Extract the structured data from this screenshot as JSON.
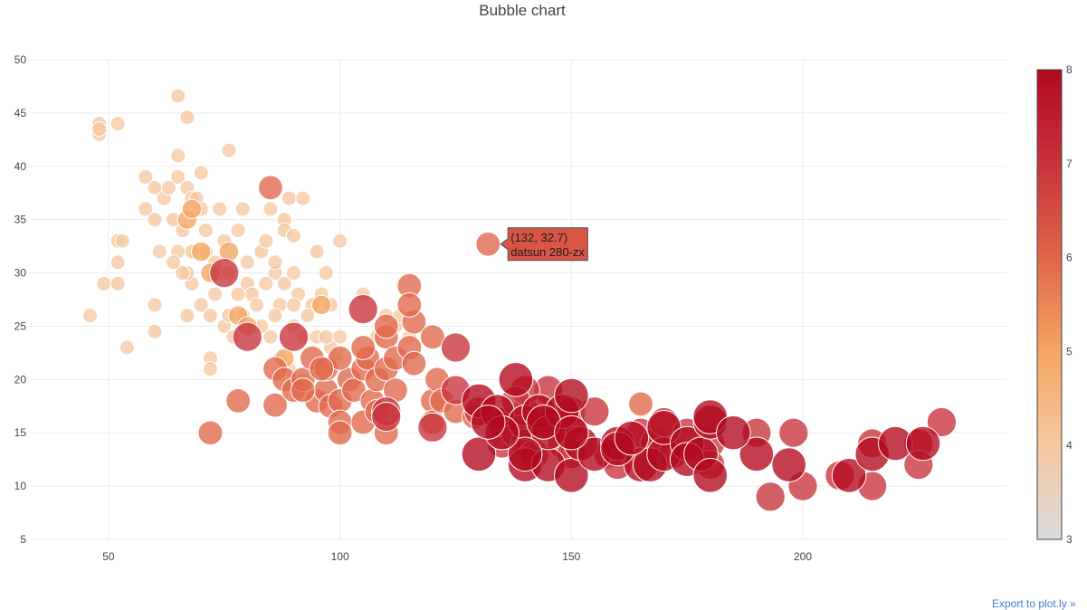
{
  "chart_data": {
    "type": "scatter",
    "title": "Bubble chart",
    "xlabel": "",
    "ylabel": "",
    "xlim": [
      33,
      244
    ],
    "ylim": [
      5,
      50
    ],
    "x_ticks": [
      50,
      100,
      150,
      200
    ],
    "y_ticks": [
      5,
      10,
      15,
      20,
      25,
      30,
      35,
      40,
      45,
      50
    ],
    "grid": true,
    "colorscale": {
      "min": 3,
      "max": 8,
      "ticks": [
        3,
        4,
        5,
        6,
        7,
        8
      ],
      "stops": [
        [
          "#dcdcdc",
          0
        ],
        [
          "#f4c8a0",
          0.2
        ],
        [
          "#f5a562",
          0.4
        ],
        [
          "#e0664a",
          0.6
        ],
        [
          "#c8323c",
          0.8
        ],
        [
          "#b2091f",
          1
        ]
      ]
    },
    "tooltip": {
      "x": 132,
      "y": 32.7,
      "label": "(132, 32.7)",
      "name": "datsun 280-zx"
    },
    "points": [
      [
        46,
        26,
        4
      ],
      [
        48,
        43,
        4
      ],
      [
        48,
        44,
        4
      ],
      [
        48,
        43.5,
        4
      ],
      [
        49,
        29,
        4
      ],
      [
        52,
        31,
        4
      ],
      [
        52,
        33,
        4
      ],
      [
        52,
        44,
        4
      ],
      [
        53,
        33,
        4
      ],
      [
        54,
        23,
        4
      ],
      [
        52,
        29,
        4
      ],
      [
        58,
        39,
        4
      ],
      [
        58,
        36,
        4
      ],
      [
        60,
        38,
        4
      ],
      [
        60,
        35,
        4
      ],
      [
        60,
        27,
        4
      ],
      [
        60,
        24.5,
        4
      ],
      [
        61,
        32,
        4
      ],
      [
        62,
        37,
        4
      ],
      [
        63,
        38,
        4
      ],
      [
        64,
        35,
        4
      ],
      [
        65,
        39,
        4
      ],
      [
        65,
        46.6,
        4
      ],
      [
        65,
        41,
        4
      ],
      [
        66,
        34,
        4
      ],
      [
        67,
        38,
        4
      ],
      [
        67,
        44.6,
        4
      ],
      [
        67,
        26,
        4
      ],
      [
        68,
        37,
        4
      ],
      [
        68,
        29,
        4
      ],
      [
        69,
        37,
        4
      ],
      [
        70,
        39.4,
        4
      ],
      [
        70,
        36,
        4
      ],
      [
        71,
        32,
        4
      ],
      [
        72,
        22,
        4
      ],
      [
        72,
        21,
        4
      ],
      [
        74,
        36,
        4
      ],
      [
        75,
        33,
        4
      ],
      [
        76,
        41.5,
        4
      ],
      [
        78,
        34,
        4
      ],
      [
        79,
        36,
        4
      ],
      [
        80,
        29,
        4
      ],
      [
        80,
        31,
        4
      ],
      [
        81,
        28,
        4
      ],
      [
        83,
        32,
        4
      ],
      [
        84,
        33,
        4
      ],
      [
        85,
        36,
        4
      ],
      [
        86,
        30,
        4
      ],
      [
        87,
        27,
        4
      ],
      [
        88,
        35,
        4
      ],
      [
        88,
        34,
        4
      ],
      [
        89,
        37,
        4
      ],
      [
        90,
        33.5,
        4
      ],
      [
        90,
        30,
        4
      ],
      [
        92,
        37,
        4
      ],
      [
        94,
        27,
        4
      ],
      [
        95,
        32,
        4
      ],
      [
        97,
        30,
        4
      ],
      [
        98,
        27,
        4
      ],
      [
        100,
        33,
        4
      ],
      [
        100,
        24,
        4
      ],
      [
        67,
        30,
        4
      ],
      [
        68,
        32,
        4
      ],
      [
        70,
        27,
        4
      ],
      [
        72,
        26,
        4
      ],
      [
        73,
        28,
        4
      ],
      [
        74,
        30,
        4
      ],
      [
        75,
        25,
        4
      ],
      [
        76,
        26,
        4
      ],
      [
        77,
        24,
        4
      ],
      [
        78,
        28,
        4
      ],
      [
        79,
        26,
        4
      ],
      [
        82,
        27,
        4
      ],
      [
        83,
        25,
        4
      ],
      [
        84,
        29,
        4
      ],
      [
        85,
        24,
        4
      ],
      [
        86,
        26,
        4
      ],
      [
        88,
        29,
        4
      ],
      [
        90,
        25,
        4
      ],
      [
        91,
        28,
        4
      ],
      [
        92,
        24,
        4
      ],
      [
        93,
        26,
        4
      ],
      [
        95,
        24,
        4
      ],
      [
        96,
        28,
        4
      ],
      [
        98,
        23,
        4
      ],
      [
        99,
        22,
        4
      ],
      [
        87,
        22,
        4
      ],
      [
        89,
        21,
        4
      ],
      [
        92,
        20,
        4
      ],
      [
        95,
        21,
        4
      ],
      [
        97,
        24,
        4
      ],
      [
        105,
        28,
        4
      ],
      [
        108,
        24,
        4
      ],
      [
        110,
        26,
        4
      ],
      [
        112,
        25,
        4
      ],
      [
        113,
        26,
        4
      ],
      [
        115,
        24,
        4
      ],
      [
        90,
        27,
        4
      ],
      [
        86,
        31,
        4
      ],
      [
        76,
        30,
        4
      ],
      [
        73,
        31,
        4
      ],
      [
        71,
        34,
        4
      ],
      [
        65,
        32,
        4
      ],
      [
        66,
        30,
        4
      ],
      [
        64,
        31,
        4
      ],
      [
        67,
        35,
        5
      ],
      [
        68,
        36,
        5
      ],
      [
        70,
        32,
        5
      ],
      [
        72,
        30,
        5
      ],
      [
        76,
        32,
        5
      ],
      [
        78,
        26,
        5
      ],
      [
        80,
        25,
        5
      ],
      [
        96,
        27,
        5
      ],
      [
        88,
        22,
        5
      ],
      [
        72,
        15,
        6
      ],
      [
        78,
        18,
        6
      ],
      [
        85,
        38,
        6
      ],
      [
        86,
        21,
        6
      ],
      [
        88,
        20,
        6
      ],
      [
        86,
        17.6,
        6
      ],
      [
        90,
        19,
        6
      ],
      [
        92,
        20,
        6
      ],
      [
        94,
        22,
        6
      ],
      [
        95,
        18,
        6
      ],
      [
        97,
        19,
        6
      ],
      [
        97,
        21,
        6
      ],
      [
        98,
        17.5,
        6
      ],
      [
        100,
        18,
        6
      ],
      [
        100,
        16,
        6
      ],
      [
        100,
        15,
        6
      ],
      [
        102,
        20,
        6
      ],
      [
        103,
        19,
        6
      ],
      [
        105,
        21,
        6
      ],
      [
        105,
        16,
        6
      ],
      [
        106,
        22,
        6
      ],
      [
        107,
        18,
        6
      ],
      [
        108,
        20,
        6
      ],
      [
        108,
        17,
        6
      ],
      [
        110,
        21,
        6
      ],
      [
        110,
        15,
        6
      ],
      [
        110,
        24,
        6
      ],
      [
        110,
        25,
        6
      ],
      [
        112,
        22,
        6
      ],
      [
        115,
        23,
        6
      ],
      [
        115,
        28.8,
        6
      ],
      [
        116,
        25.4,
        6
      ],
      [
        116,
        21.5,
        6
      ],
      [
        120,
        24,
        6
      ],
      [
        120,
        18,
        6
      ],
      [
        120,
        16,
        6
      ],
      [
        121,
        20,
        6
      ],
      [
        122,
        18,
        6
      ],
      [
        125,
        17,
        6
      ],
      [
        165,
        17.7,
        6
      ],
      [
        105,
        23,
        6
      ],
      [
        100,
        22,
        6
      ],
      [
        96,
        21,
        6
      ],
      [
        92,
        19,
        6
      ],
      [
        115,
        27,
        6
      ],
      [
        112,
        19,
        6
      ],
      [
        132,
        32.7,
        6
      ],
      [
        129,
        16.5,
        6
      ],
      [
        75,
        30,
        7
      ],
      [
        80,
        24,
        7
      ],
      [
        90,
        24,
        7
      ],
      [
        105,
        26.6,
        7
      ],
      [
        110,
        17,
        7
      ],
      [
        110,
        16.5,
        7
      ],
      [
        120,
        15.5,
        7
      ],
      [
        125,
        19,
        7
      ],
      [
        125,
        23,
        7
      ],
      [
        130,
        17,
        7
      ],
      [
        135,
        14,
        7
      ],
      [
        135,
        16,
        7
      ],
      [
        138,
        15,
        7
      ],
      [
        140,
        17,
        7
      ],
      [
        140,
        14,
        7
      ],
      [
        142,
        13,
        7
      ],
      [
        145,
        16,
        7
      ],
      [
        145,
        19,
        7
      ],
      [
        148,
        14,
        7
      ],
      [
        150,
        16,
        7
      ],
      [
        150,
        13,
        7
      ],
      [
        150,
        17,
        7
      ],
      [
        155,
        17,
        7
      ],
      [
        158,
        13,
        7
      ],
      [
        160,
        12,
        7
      ],
      [
        165,
        15,
        7
      ],
      [
        168,
        14,
        7
      ],
      [
        170,
        16,
        7
      ],
      [
        172,
        13,
        7
      ],
      [
        175,
        15,
        7
      ],
      [
        180,
        14,
        7
      ],
      [
        180,
        12,
        7
      ],
      [
        190,
        15,
        7
      ],
      [
        193,
        9,
        7
      ],
      [
        198,
        15,
        7
      ],
      [
        200,
        10,
        7
      ],
      [
        208,
        11,
        7
      ],
      [
        215,
        10,
        7
      ],
      [
        215,
        14,
        7
      ],
      [
        225,
        14,
        7
      ],
      [
        225,
        12,
        7
      ],
      [
        230,
        16,
        7
      ],
      [
        140,
        19,
        7
      ],
      [
        138,
        18,
        7
      ],
      [
        130,
        13,
        8
      ],
      [
        130,
        18,
        8
      ],
      [
        134,
        17,
        8
      ],
      [
        138,
        20,
        8
      ],
      [
        140,
        12,
        8
      ],
      [
        140,
        16,
        8
      ],
      [
        143,
        17,
        8
      ],
      [
        145,
        12,
        8
      ],
      [
        145,
        15,
        8
      ],
      [
        148,
        17,
        8
      ],
      [
        150,
        18.5,
        8
      ],
      [
        150,
        11,
        8
      ],
      [
        152,
        14,
        8
      ],
      [
        155,
        13,
        8
      ],
      [
        160,
        14,
        8
      ],
      [
        165,
        12,
        8
      ],
      [
        167,
        12,
        8
      ],
      [
        170,
        13,
        8
      ],
      [
        170,
        15.5,
        8
      ],
      [
        175,
        14,
        8
      ],
      [
        175,
        12.5,
        8
      ],
      [
        178,
        13,
        8
      ],
      [
        180,
        11,
        8
      ],
      [
        180,
        16,
        8
      ],
      [
        180,
        16.5,
        8
      ],
      [
        190,
        13,
        8
      ],
      [
        197,
        12,
        8
      ],
      [
        210,
        11,
        8
      ],
      [
        215,
        13,
        8
      ],
      [
        220,
        14,
        8
      ],
      [
        226,
        14,
        8
      ],
      [
        140,
        13,
        8
      ],
      [
        144,
        16,
        8
      ],
      [
        150,
        15,
        8
      ],
      [
        135,
        15,
        8
      ],
      [
        132,
        16,
        8
      ],
      [
        160,
        13.5,
        8
      ],
      [
        163,
        14.5,
        8
      ],
      [
        185,
        15,
        8
      ]
    ]
  },
  "page": {
    "export_link": "Export to plot.ly »"
  }
}
